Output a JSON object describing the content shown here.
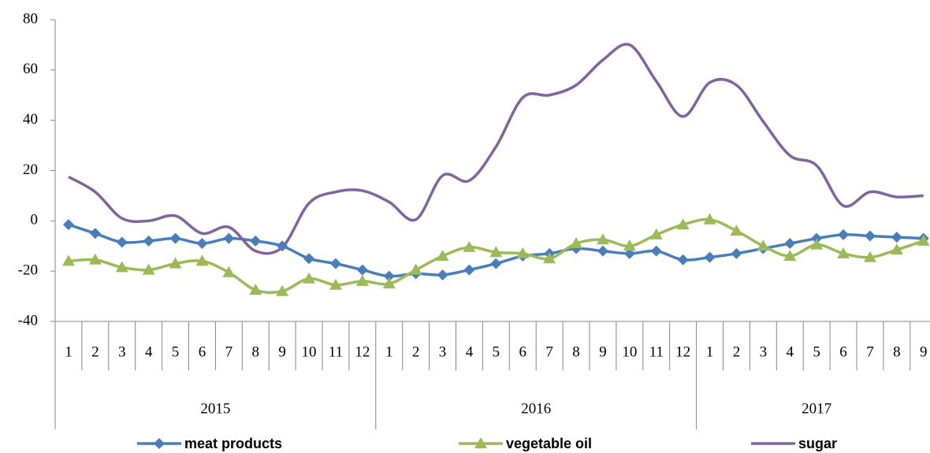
{
  "chart_data": {
    "type": "line",
    "groups": [
      {
        "label": "2015",
        "categories": [
          "1",
          "2",
          "3",
          "4",
          "5",
          "6",
          "7",
          "8",
          "9",
          "10",
          "11",
          "12"
        ]
      },
      {
        "label": "2016",
        "categories": [
          "1",
          "2",
          "3",
          "4",
          "5",
          "6",
          "7",
          "8",
          "9",
          "10",
          "11",
          "12"
        ]
      },
      {
        "label": "2017",
        "categories": [
          "1",
          "2",
          "3",
          "4",
          "5",
          "6",
          "7",
          "8",
          "9"
        ]
      }
    ],
    "series": [
      {
        "name": "meat products",
        "color": "#4a7ebb",
        "marker": "diamond",
        "values": [
          -1.5,
          -5,
          -8.5,
          -8,
          -7,
          -9,
          -7,
          -8,
          -10,
          -15,
          -17,
          -19.5,
          -22,
          -21,
          -21.5,
          -19.5,
          -17,
          -14,
          -13,
          -11,
          -12,
          -13,
          -12,
          -15.5,
          -14.5,
          -13,
          -11,
          -9,
          -7,
          -5.5,
          -6,
          -6.5,
          -7
        ]
      },
      {
        "name": "vegetable oil",
        "color": "#9bbb59",
        "marker": "triangle",
        "values": [
          -16,
          -15.5,
          -18.5,
          -19.5,
          -17,
          -16,
          -20.5,
          -27.5,
          -28,
          -23,
          -25.5,
          -24,
          -25,
          -19.5,
          -14,
          -10.5,
          -12.5,
          -13,
          -15,
          -9,
          -7.5,
          -10,
          -5.5,
          -1.5,
          0.5,
          -4,
          -10,
          -14,
          -9.5,
          -13,
          -14.5,
          -11.5,
          -8
        ]
      },
      {
        "name": "sugar",
        "color": "#8064a2",
        "marker": "none",
        "values": [
          17.5,
          11.5,
          1,
          0,
          2,
          -5,
          -2.5,
          -12,
          -10.5,
          7,
          11.5,
          12,
          7.5,
          0.5,
          18,
          16,
          29.5,
          49,
          50,
          54,
          64,
          70,
          55.5,
          41.5,
          55,
          54,
          39.5,
          26,
          22,
          6,
          11.5,
          9.5,
          10
        ]
      }
    ],
    "ylim": [
      -40,
      80
    ],
    "yticks": [
      -40,
      -20,
      0,
      20,
      40,
      60,
      80
    ],
    "smooth": true,
    "legend": "bottom"
  }
}
